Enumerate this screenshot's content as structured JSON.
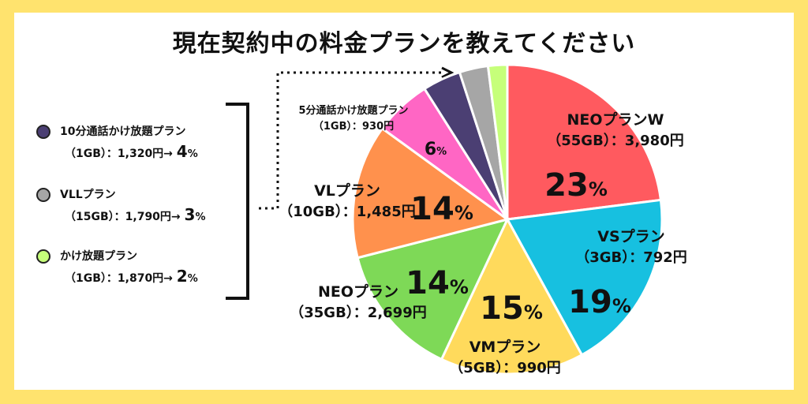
{
  "title": "現在契約中の料金プランを教えてください",
  "legend": [
    {
      "name": "10分通話かけ放題プラン",
      "detail": "（1GB）：1,320円→ ",
      "pct": "4",
      "unit": "%",
      "color": "#4B3F73"
    },
    {
      "name": "VLLプラン",
      "detail": "（15GB）：1,790円→ ",
      "pct": "3",
      "unit": "%",
      "color": "#A6A6A6"
    },
    {
      "name": "かけ放題プラン",
      "detail": "（1GB）：1,870円→ ",
      "pct": "2",
      "unit": "%",
      "color": "#C6FF7A"
    }
  ],
  "chart_data": {
    "type": "pie",
    "start": "top, clockwise",
    "slices": [
      {
        "label_line1": "NEOプランW",
        "label_line2": "（55GB）：3,980円",
        "value": 23,
        "pct_label": "23",
        "color": "#FF5A5F"
      },
      {
        "label_line1": "VSプラン",
        "label_line2": "（3GB）：792円",
        "value": 19,
        "pct_label": "19",
        "color": "#17C0E0"
      },
      {
        "label_line1": "VMプラン",
        "label_line2": "（5GB）：990円",
        "value": 15,
        "pct_label": "15",
        "color": "#FFDA5C"
      },
      {
        "label_line1": "NEOプラン",
        "label_line2": "（35GB）：2,699円",
        "value": 14,
        "pct_label": "14",
        "color": "#7ED957"
      },
      {
        "label_line1": "VLプラン",
        "label_line2": "（10GB）：1,485円",
        "value": 14,
        "pct_label": "14",
        "color": "#FF914D"
      },
      {
        "label_line1": "5分通話かけ放題プラン",
        "label_line2": "（1GB）：930円",
        "value": 6,
        "pct_label": "6",
        "color": "#FF66C4"
      },
      {
        "label_line1": "",
        "label_line2": "",
        "value": 4,
        "pct_label": "",
        "color": "#4B3F73"
      },
      {
        "label_line1": "",
        "label_line2": "",
        "value": 3,
        "pct_label": "",
        "color": "#A6A6A6"
      },
      {
        "label_line1": "",
        "label_line2": "",
        "value": 2,
        "pct_label": "",
        "color": "#C6FF7A"
      }
    ],
    "percent_unit": "%"
  }
}
